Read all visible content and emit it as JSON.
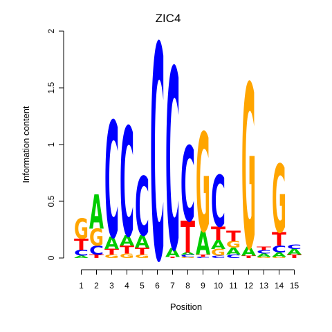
{
  "chart_data": {
    "type": "sequence-logo",
    "title": "ZIC4",
    "xlabel": "Position",
    "ylabel": "Information content",
    "ylim": [
      0,
      2
    ],
    "yticks": [
      "0",
      "0.5",
      "1",
      "1.5",
      "2"
    ],
    "positions": [
      "1",
      "2",
      "3",
      "4",
      "5",
      "6",
      "7",
      "8",
      "9",
      "10",
      "11",
      "12",
      "13",
      "14",
      "15"
    ],
    "colors": {
      "A": "#00cc00",
      "C": "#0000ff",
      "G": "#ffa500",
      "T": "#ff0000"
    },
    "stacks": [
      [
        {
          "b": "A",
          "h": 0.02
        },
        {
          "b": "C",
          "h": 0.05
        },
        {
          "b": "T",
          "h": 0.1
        },
        {
          "b": "G",
          "h": 0.18
        }
      ],
      [
        {
          "b": "T",
          "h": 0.03
        },
        {
          "b": "C",
          "h": 0.08
        },
        {
          "b": "G",
          "h": 0.15
        },
        {
          "b": "A",
          "h": 0.3
        }
      ],
      [
        {
          "b": "G",
          "h": 0.03
        },
        {
          "b": "T",
          "h": 0.05
        },
        {
          "b": "A",
          "h": 0.11
        },
        {
          "b": "C",
          "h": 1.02
        }
      ],
      [
        {
          "b": "G",
          "h": 0.04
        },
        {
          "b": "T",
          "h": 0.07
        },
        {
          "b": "A",
          "h": 0.09
        },
        {
          "b": "C",
          "h": 0.96
        }
      ],
      [
        {
          "b": "G",
          "h": 0.03
        },
        {
          "b": "T",
          "h": 0.06
        },
        {
          "b": "A",
          "h": 0.11
        },
        {
          "b": "C",
          "h": 0.52
        }
      ],
      [
        {
          "b": "C",
          "h": 1.89
        }
      ],
      [
        {
          "b": "T",
          "h": 0.01
        },
        {
          "b": "A",
          "h": 0.08
        },
        {
          "b": "C",
          "h": 1.59
        }
      ],
      [
        {
          "b": "G",
          "h": 0.01
        },
        {
          "b": "C",
          "h": 0.02
        },
        {
          "b": "A",
          "h": 0.02
        },
        {
          "b": "T",
          "h": 0.28
        },
        {
          "b": "C",
          "h": 0.66
        }
      ],
      [
        {
          "b": "C",
          "h": 0.01
        },
        {
          "b": "T",
          "h": 0.02
        },
        {
          "b": "A",
          "h": 0.21
        },
        {
          "b": "G",
          "h": 0.87
        }
      ],
      [
        {
          "b": "C",
          "h": 0.02
        },
        {
          "b": "G",
          "h": 0.06
        },
        {
          "b": "A",
          "h": 0.08
        },
        {
          "b": "T",
          "h": 0.12
        },
        {
          "b": "C",
          "h": 0.45
        }
      ],
      [
        {
          "b": "C",
          "h": 0.03
        },
        {
          "b": "A",
          "h": 0.06
        },
        {
          "b": "G",
          "h": 0.06
        },
        {
          "b": "T",
          "h": 0.09
        }
      ],
      [
        {
          "b": "T",
          "h": 0.02
        },
        {
          "b": "A",
          "h": 0.08
        },
        {
          "b": "G",
          "h": 1.44
        }
      ],
      [
        {
          "b": "G",
          "h": 0.01
        },
        {
          "b": "A",
          "h": 0.03
        },
        {
          "b": "C",
          "h": 0.03
        },
        {
          "b": "T",
          "h": 0.03
        }
      ],
      [
        {
          "b": "G",
          "h": 0.01
        },
        {
          "b": "A",
          "h": 0.04
        },
        {
          "b": "C",
          "h": 0.06
        },
        {
          "b": "T",
          "h": 0.12
        },
        {
          "b": "G",
          "h": 0.6
        }
      ],
      [
        {
          "b": "T",
          "h": 0.03
        },
        {
          "b": "A",
          "h": 0.05
        },
        {
          "b": "C",
          "h": 0.04
        }
      ]
    ]
  }
}
